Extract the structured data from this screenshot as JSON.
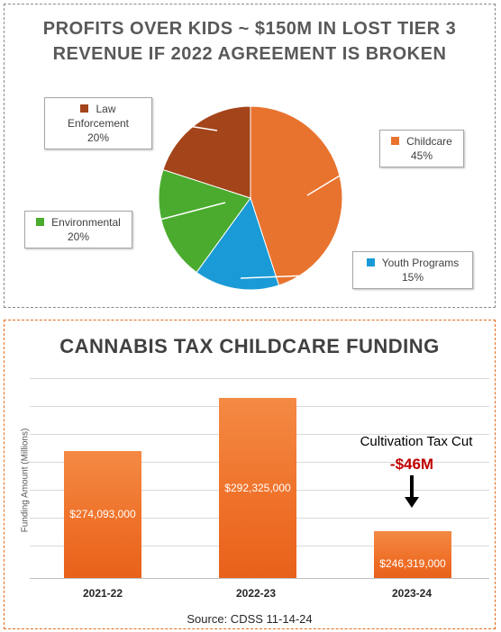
{
  "pie_panel": {
    "title_line1": "PROFITS OVER KIDS ~ $150M IN LOST TIER 3",
    "title_line2": "REVENUE IF 2022 AGREEMENT IS BROKEN"
  },
  "bar_panel": {
    "title": "CANNABIS TAX CHILDCARE FUNDING",
    "annotation": "Cultivation Tax Cut",
    "delta": "-$46M",
    "source": "Source: CDSS 11-14-24"
  },
  "chart_data": [
    {
      "type": "pie",
      "title": "PROFITS OVER KIDS ~ $150M IN LOST TIER 3 REVENUE IF 2022 AGREEMENT IS BROKEN",
      "slices": [
        {
          "label": "Childcare",
          "value": 45,
          "display": "45%",
          "color": "#e8732e"
        },
        {
          "label": "Youth Programs",
          "value": 15,
          "display": "15%",
          "color": "#1a9ad6"
        },
        {
          "label": "Environmental",
          "value": 20,
          "display": "20%",
          "color": "#4aab2e"
        },
        {
          "label": "Law Enforcement",
          "value": 20,
          "display": "20%",
          "color": "#a3441a"
        }
      ]
    },
    {
      "type": "bar",
      "title": "CANNABIS TAX CHILDCARE FUNDING",
      "ylabel": "Funding Amount (Millions)",
      "xlabel": "",
      "categories": [
        "2021-22",
        "2022-23",
        "2023-24"
      ],
      "values": [
        274093000,
        292325000,
        246319000
      ],
      "value_labels": [
        "$274,093,000",
        "$292,325,000",
        "$246,319,000"
      ],
      "color": "#ef7028",
      "grid": true
    }
  ]
}
